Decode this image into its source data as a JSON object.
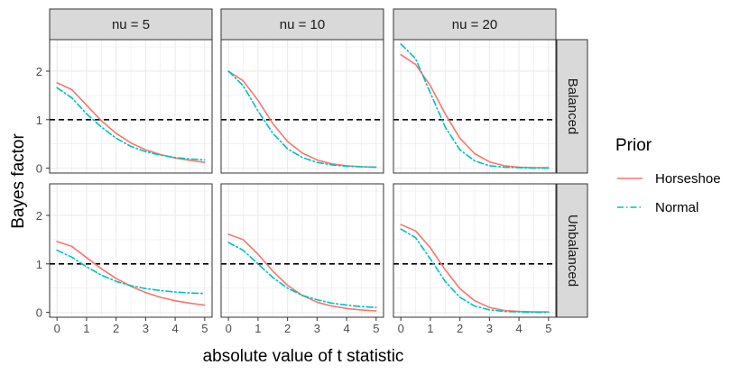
{
  "chart_data": {
    "type": "line",
    "title": "",
    "xlabel": "absolute value of t statistic",
    "ylabel": "Bayes factor",
    "xlim": [
      -0.25,
      5.25
    ],
    "ylim": [
      -0.1,
      2.65
    ],
    "xticks": [
      "0",
      "1",
      "2",
      "3",
      "4",
      "5"
    ],
    "yticks": [
      "0",
      "1",
      "2"
    ],
    "reference_line": {
      "y": 1,
      "style": "dashed",
      "color": "#000000"
    },
    "column_facets": [
      "nu = 5",
      "nu = 10",
      "nu = 20"
    ],
    "row_facets": [
      "Balanced",
      "Unbalanced"
    ],
    "legend": {
      "title": "Prior",
      "entries": [
        {
          "name": "Horseshoe",
          "color": "#F8766D",
          "style": "solid"
        },
        {
          "name": "Normal",
          "color": "#00BFC4",
          "style": "dotdash"
        }
      ]
    },
    "x": [
      0,
      0.5,
      1,
      1.5,
      2,
      2.5,
      3,
      3.5,
      4,
      4.5,
      5
    ],
    "panels": [
      {
        "row": "Balanced",
        "col": "nu = 5",
        "series": [
          {
            "name": "Horseshoe",
            "values": [
              1.76,
              1.62,
              1.3,
              0.98,
              0.72,
              0.52,
              0.38,
              0.28,
              0.21,
              0.16,
              0.12
            ]
          },
          {
            "name": "Normal",
            "values": [
              1.66,
              1.45,
              1.12,
              0.85,
              0.62,
              0.45,
              0.34,
              0.27,
              0.22,
              0.19,
              0.17
            ]
          }
        ]
      },
      {
        "row": "Balanced",
        "col": "nu = 10",
        "series": [
          {
            "name": "Horseshoe",
            "values": [
              2.0,
              1.8,
              1.4,
              0.92,
              0.55,
              0.31,
              0.17,
              0.09,
              0.05,
              0.03,
              0.02
            ]
          },
          {
            "name": "Normal",
            "values": [
              2.0,
              1.7,
              1.18,
              0.72,
              0.4,
              0.22,
              0.12,
              0.07,
              0.04,
              0.03,
              0.02
            ]
          }
        ]
      },
      {
        "row": "Balanced",
        "col": "nu = 20",
        "series": [
          {
            "name": "Horseshoe",
            "values": [
              2.34,
              2.14,
              1.7,
              1.12,
              0.62,
              0.3,
              0.13,
              0.05,
              0.02,
              0.01,
              0.01
            ]
          },
          {
            "name": "Normal",
            "values": [
              2.56,
              2.26,
              1.55,
              0.85,
              0.38,
              0.15,
              0.05,
              0.02,
              0.01,
              0.0,
              0.0
            ]
          }
        ]
      },
      {
        "row": "Unbalanced",
        "col": "nu = 5",
        "series": [
          {
            "name": "Horseshoe",
            "values": [
              1.46,
              1.36,
              1.13,
              0.9,
              0.7,
              0.54,
              0.41,
              0.31,
              0.24,
              0.19,
              0.15
            ]
          },
          {
            "name": "Normal",
            "values": [
              1.28,
              1.14,
              0.94,
              0.77,
              0.64,
              0.55,
              0.49,
              0.45,
              0.42,
              0.4,
              0.39
            ]
          }
        ]
      },
      {
        "row": "Unbalanced",
        "col": "nu = 10",
        "series": [
          {
            "name": "Horseshoe",
            "values": [
              1.61,
              1.5,
              1.2,
              0.85,
              0.56,
              0.35,
              0.21,
              0.13,
              0.08,
              0.05,
              0.03
            ]
          },
          {
            "name": "Normal",
            "values": [
              1.44,
              1.28,
              1.0,
              0.72,
              0.5,
              0.35,
              0.26,
              0.19,
              0.15,
              0.12,
              0.1
            ]
          }
        ]
      },
      {
        "row": "Unbalanced",
        "col": "nu = 20",
        "series": [
          {
            "name": "Horseshoe",
            "values": [
              1.81,
              1.68,
              1.33,
              0.88,
              0.49,
              0.24,
              0.1,
              0.04,
              0.02,
              0.01,
              0.01
            ]
          },
          {
            "name": "Normal",
            "values": [
              1.72,
              1.54,
              1.1,
              0.64,
              0.31,
              0.13,
              0.05,
              0.02,
              0.01,
              0.0,
              0.0
            ]
          }
        ]
      }
    ]
  }
}
